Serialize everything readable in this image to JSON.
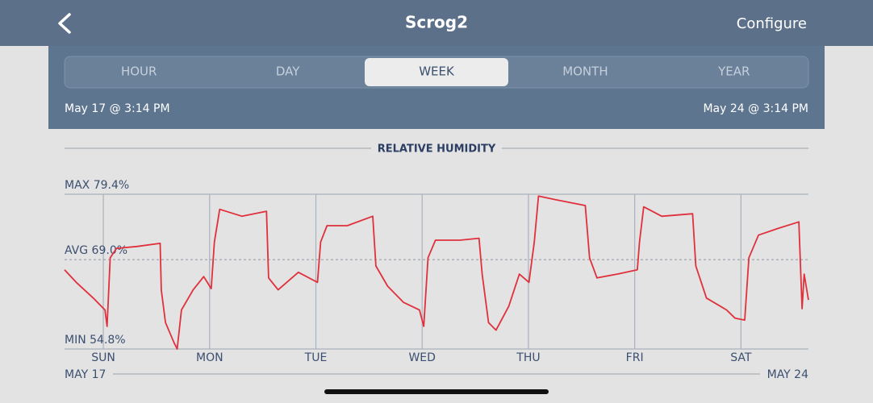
{
  "header": {
    "title": "Scrog2",
    "action": "Configure"
  },
  "tabs": {
    "items": [
      "HOUR",
      "DAY",
      "WEEK",
      "MONTH",
      "YEAR"
    ],
    "selected": 2
  },
  "range": {
    "start": "May 17 @ 3:14 PM",
    "end": "May 24 @ 3:14 PM"
  },
  "chart_data": {
    "type": "line",
    "title": "RELATIVE HUMIDITY",
    "xlim": [
      0,
      7
    ],
    "ylim": [
      54.8,
      79.4
    ],
    "yticks": [
      {
        "value": 54.8,
        "label": "MIN 54.8%"
      },
      {
        "value": 69.0,
        "label": "AVG 69.0%"
      },
      {
        "value": 79.4,
        "label": "MAX 79.4%"
      }
    ],
    "xticks": [
      {
        "value": 0.365,
        "label": "SUN"
      },
      {
        "value": 1.365,
        "label": "MON"
      },
      {
        "value": 2.365,
        "label": "TUE"
      },
      {
        "value": 3.365,
        "label": "WED"
      },
      {
        "value": 4.365,
        "label": "THU"
      },
      {
        "value": 5.365,
        "label": "FRI"
      },
      {
        "value": 6.365,
        "label": "SAT"
      }
    ],
    "x_range_labels": [
      "MAY 17",
      "MAY 24"
    ],
    "grid": true,
    "series": [
      {
        "color": "#e0303c",
        "x": [
          0,
          0.11,
          0.27,
          0.38,
          0.4,
          0.43,
          0.49,
          0.68,
          0.9,
          0.91,
          0.95,
          1.03,
          1.06,
          1.1,
          1.21,
          1.31,
          1.38,
          1.41,
          1.46,
          1.67,
          1.9,
          1.92,
          2.01,
          2.2,
          2.38,
          2.41,
          2.47,
          2.66,
          2.9,
          2.93,
          3.04,
          3.19,
          3.34,
          3.38,
          3.42,
          3.49,
          3.72,
          3.9,
          3.93,
          3.99,
          4.06,
          4.18,
          4.28,
          4.37,
          4.42,
          4.46,
          4.63,
          4.9,
          4.94,
          5.01,
          5.2,
          5.39,
          5.41,
          5.45,
          5.62,
          5.91,
          5.94,
          6.04,
          6.23,
          6.31,
          6.4,
          6.44,
          6.53,
          6.72,
          6.91,
          6.94,
          6.96,
          7.0
        ],
        "values": [
          67.4,
          65.4,
          62.9,
          61.0,
          58.4,
          69.3,
          70.8,
          71.1,
          71.6,
          64.2,
          59.0,
          55.8,
          54.8,
          61.0,
          64.2,
          66.3,
          64.4,
          71.8,
          77.0,
          75.9,
          76.7,
          66.1,
          64.2,
          67.0,
          65.4,
          71.8,
          74.4,
          74.4,
          75.9,
          68.0,
          64.8,
          62.2,
          61.0,
          58.4,
          69.3,
          72.1,
          72.1,
          72.4,
          66.7,
          59.0,
          57.8,
          61.6,
          66.7,
          65.4,
          71.8,
          79.1,
          78.5,
          77.6,
          69.3,
          66.1,
          66.7,
          67.4,
          71.8,
          77.4,
          75.9,
          76.3,
          68.0,
          62.9,
          61.0,
          59.7,
          59.4,
          69.3,
          72.9,
          74.0,
          75.0,
          61.2,
          66.7,
          62.6
        ]
      }
    ]
  }
}
